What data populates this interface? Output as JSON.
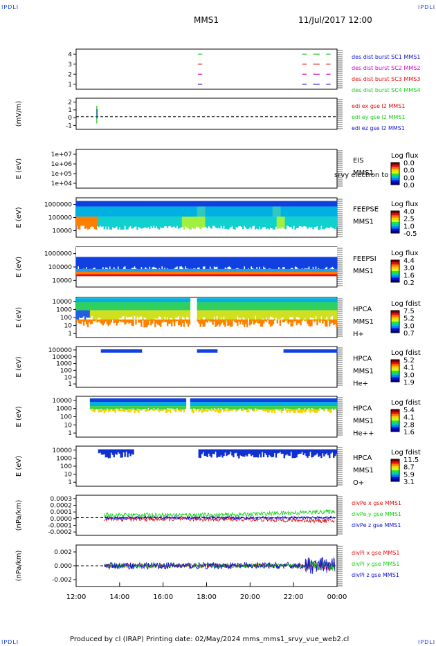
{
  "header": {
    "corner_label": "IPDLI",
    "spacecraft": "MMS1",
    "datetime": "11/Jul/2017 12:00"
  },
  "footer": {
    "text": "Produced by cl (IRAP)   Printing date: 02/May/2024   mms_mms1_srvy_vue_web2.cl"
  },
  "colors": {
    "blue": "#1010d0",
    "magenta": "#d000d0",
    "red": "#e01010",
    "green": "#10d010"
  },
  "chart_data": [
    {
      "type": "line",
      "panel": "des dist burst",
      "yticks": [
        "1",
        "2",
        "3",
        "4"
      ],
      "ylim": [
        0.5,
        4.5
      ],
      "legend": [
        {
          "name": "des dist burst SC1 MMS1",
          "color": "#1010d0",
          "level": 1
        },
        {
          "name": "des dist burst SC2 MMS2",
          "color": "#d000d0",
          "level": 2
        },
        {
          "name": "des dist burst SC3 MMS3",
          "color": "#e01010",
          "level": 3
        },
        {
          "name": "des dist burst SC4 MMS4",
          "color": "#10d010",
          "level": 4
        }
      ],
      "intervals_hours": [
        [
          17.6,
          17.8
        ],
        [
          22.4,
          22.6
        ],
        [
          22.9,
          23.2
        ],
        [
          23.5,
          23.7
        ]
      ]
    },
    {
      "type": "line",
      "ylabel": "(mV/m)",
      "yticks": [
        "-1",
        "0",
        "1",
        "2"
      ],
      "ylim": [
        -1.5,
        2.2
      ],
      "legend": [
        {
          "name": "edi ex gse l2 MMS1",
          "color": "#e01010"
        },
        {
          "name": "edi ey gse l2 MMS1",
          "color": "#10d010"
        },
        {
          "name": "edi ez gse l2 MMS1",
          "color": "#1010d0"
        }
      ]
    },
    {
      "type": "heatmap",
      "ylabel": "E (eV)",
      "yticks": [
        "1e+04",
        "1e+05",
        "1e+06",
        "1e+07"
      ],
      "side": [
        "EIS",
        "MMS1"
      ],
      "overlap_text": "srvy electron to",
      "colorbar_title": "Log flux",
      "colorbar_values": [
        "0.0",
        "0.0",
        "0.0",
        "0.0"
      ]
    },
    {
      "type": "heatmap",
      "ylabel": "E (eV)",
      "yticks": [
        "10000",
        "100000",
        "1000000"
      ],
      "side": [
        "FEEPSE",
        "MMS1"
      ],
      "colorbar_title": "Log flux",
      "colorbar_values": [
        "4.0",
        "2.5",
        "1.0",
        "-0.5"
      ]
    },
    {
      "type": "heatmap",
      "ylabel": "E (eV)",
      "yticks": [
        "10000",
        "100000",
        "1000000"
      ],
      "side": [
        "FEEPSI",
        "MMS1"
      ],
      "colorbar_title": "Log flux",
      "colorbar_values": [
        "4.4",
        "3.0",
        "1.6",
        "0.2"
      ]
    },
    {
      "type": "heatmap",
      "ylabel": "E (eV)",
      "yticks": [
        "1",
        "10",
        "100",
        "1000",
        "10000"
      ],
      "side": [
        "HPCA",
        "MMS1",
        "H+"
      ],
      "colorbar_title": "Log fdist",
      "colorbar_values": [
        "7.5",
        "5.2",
        "3.0",
        "0.7"
      ]
    },
    {
      "type": "heatmap",
      "ylabel": "E (eV)",
      "yticks": [
        "1",
        "10",
        "100",
        "1000",
        "10000",
        "100000"
      ],
      "side": [
        "HPCA",
        "MMS1",
        "He+"
      ],
      "colorbar_title": "Log fdist",
      "colorbar_values": [
        "5.2",
        "4.1",
        "3.0",
        "1.9"
      ]
    },
    {
      "type": "heatmap",
      "ylabel": "E (eV)",
      "yticks": [
        "1",
        "10",
        "100",
        "1000",
        "10000"
      ],
      "side": [
        "HPCA",
        "MMS1",
        "He++"
      ],
      "colorbar_title": "Log fdist",
      "colorbar_values": [
        "5.4",
        "4.1",
        "2.8",
        "1.6"
      ]
    },
    {
      "type": "heatmap",
      "ylabel": "E (eV)",
      "yticks": [
        "1",
        "10",
        "100",
        "1000",
        "10000"
      ],
      "side": [
        "HPCA",
        "MMS1",
        "O+"
      ],
      "colorbar_title": "Log fdist",
      "colorbar_values": [
        "11.5",
        "8.7",
        "5.9",
        "3.1"
      ]
    },
    {
      "type": "line",
      "ylabel": "(nPa/km)",
      "yticks": [
        "-0.0002",
        "-0.0001",
        "0.0000",
        "0.0001",
        "0.0002",
        "0.0003"
      ],
      "ylim": [
        -0.00025,
        0.00032
      ],
      "legend": [
        {
          "name": "divPe x gse MMS1",
          "color": "#e01010"
        },
        {
          "name": "divPe y gse MMS1",
          "color": "#10d010"
        },
        {
          "name": "divPe z gse MMS1",
          "color": "#1010d0"
        }
      ]
    },
    {
      "type": "line",
      "ylabel": "(nPa/km)",
      "yticks": [
        "-0.002",
        "0.000",
        "0.002"
      ],
      "ylim": [
        -0.003,
        0.003
      ],
      "legend": [
        {
          "name": "divPi x gse MMS1",
          "color": "#e01010"
        },
        {
          "name": "divPi y gse MMS1",
          "color": "#10d010"
        },
        {
          "name": "divPi z gse MMS1",
          "color": "#1010d0"
        }
      ]
    }
  ],
  "xaxis": {
    "ticks": [
      "12:00",
      "14:00",
      "16:00",
      "18:00",
      "20:00",
      "22:00",
      "00:00"
    ],
    "range_hours": [
      12,
      24
    ]
  }
}
